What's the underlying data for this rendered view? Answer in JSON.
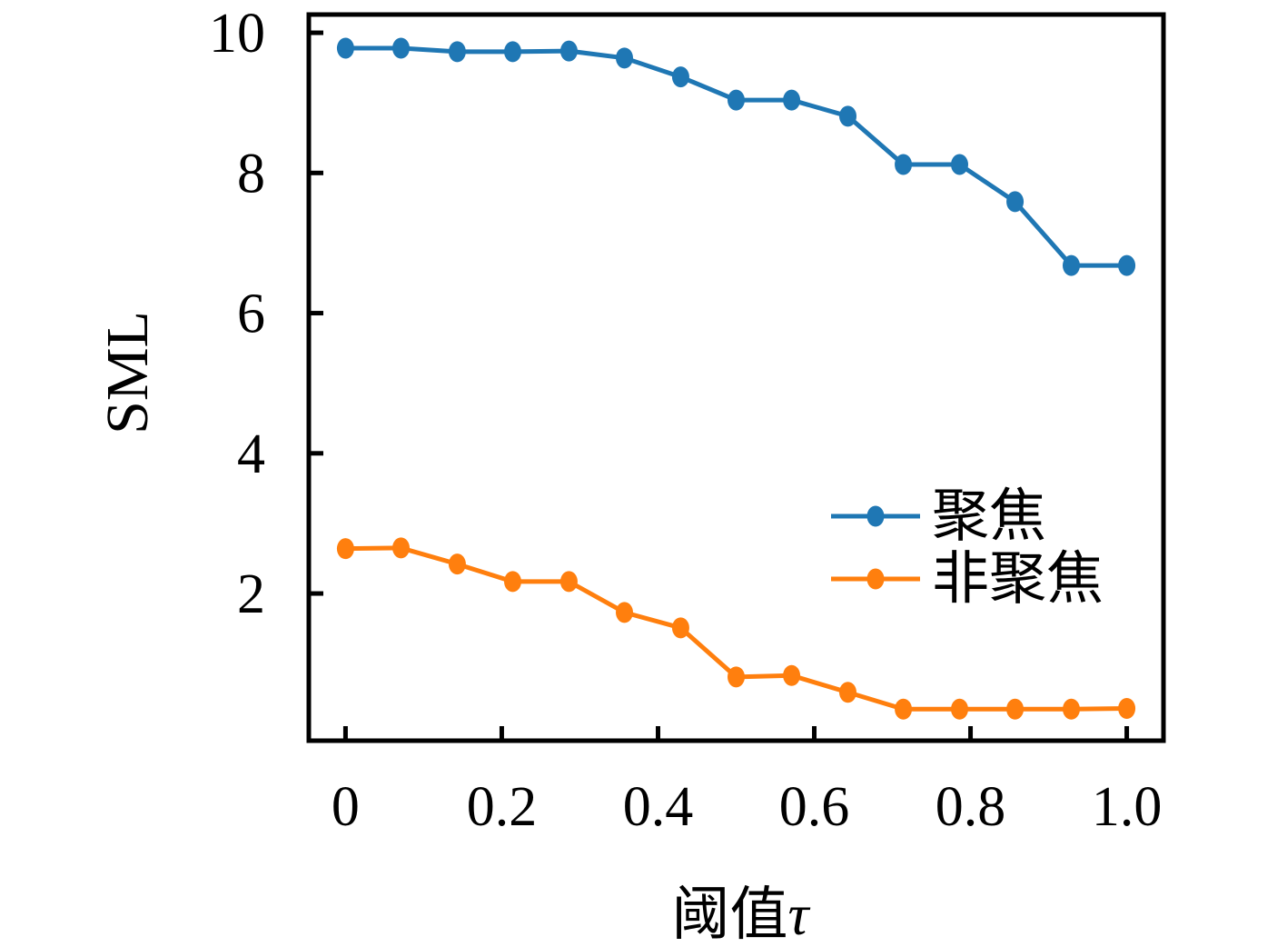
{
  "figure": {
    "background": "#ffffff",
    "axis_color": "#000000"
  },
  "chart_data": {
    "type": "line",
    "title": "",
    "xlabel": "阈值τ",
    "ylabel": "SML",
    "x": [
      0,
      0.071,
      0.143,
      0.214,
      0.286,
      0.357,
      0.429,
      0.5,
      0.571,
      0.643,
      0.714,
      0.786,
      0.857,
      0.929,
      1.0
    ],
    "series": [
      {
        "name": "聚焦",
        "color": "#1f77b4",
        "marker": "circle",
        "values": [
          9.78,
          9.78,
          9.73,
          9.73,
          9.74,
          9.64,
          9.37,
          9.04,
          9.04,
          8.81,
          8.12,
          8.12,
          7.59,
          6.68,
          6.68
        ]
      },
      {
        "name": "非聚焦",
        "color": "#ff7f0e",
        "marker": "circle",
        "values": [
          2.64,
          2.65,
          2.42,
          2.17,
          2.17,
          1.73,
          1.51,
          0.81,
          0.83,
          0.59,
          0.35,
          0.35,
          0.35,
          0.35,
          0.36
        ]
      }
    ],
    "xticks": [
      0,
      0.2,
      0.4,
      0.6,
      0.8,
      1.0
    ],
    "xtick_labels": [
      "0",
      "0.2",
      "0.4",
      "0.6",
      "0.8",
      "1.0"
    ],
    "yticks": [
      2,
      4,
      6,
      8,
      10
    ],
    "ytick_labels": [
      "2",
      "4",
      "6",
      "8",
      "10"
    ],
    "xlim": [
      -0.047,
      1.047
    ],
    "ylim": [
      -0.1,
      10.26
    ],
    "grid": false,
    "tick_direction": "in",
    "legend": {
      "position": "lower-right-inside",
      "frame": false,
      "entries": [
        "聚焦",
        "非聚焦"
      ]
    }
  }
}
